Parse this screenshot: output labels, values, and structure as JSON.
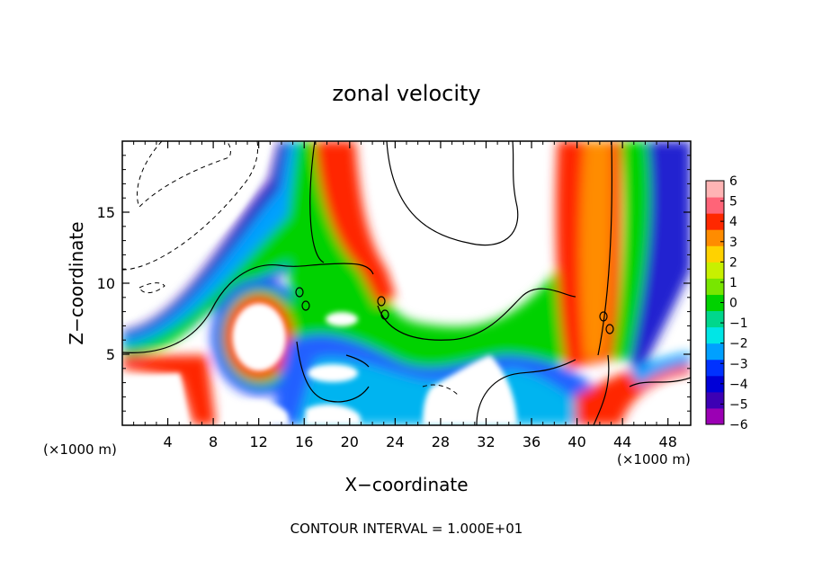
{
  "chart_data": {
    "type": "heatmap",
    "title": "zonal velocity",
    "xlabel": "X−coordinate",
    "ylabel": "Z−coordinate",
    "x_unit_label": "(×1000 m)",
    "z_unit_label": "(×1000 m)",
    "footer": "CONTOUR INTERVAL = 1.000E+01",
    "xlim": [
      0,
      50
    ],
    "ylim": [
      0,
      20
    ],
    "x_ticks": [
      4,
      8,
      12,
      16,
      20,
      24,
      28,
      32,
      36,
      40,
      44,
      48
    ],
    "x_tick_labels": [
      "4",
      "8",
      "12",
      "16",
      "20",
      "24",
      "28",
      "32",
      "36",
      "40",
      "44",
      "48"
    ],
    "y_ticks": [
      5,
      10,
      15
    ],
    "y_tick_labels": [
      "5",
      "10",
      "15"
    ],
    "colorbar": {
      "range": [
        -6,
        6
      ],
      "labels": [
        "6",
        "5",
        "4",
        "3",
        "2",
        "1",
        "0",
        "−1",
        "−2",
        "−3",
        "−4",
        "−5",
        "−6"
      ],
      "colors": [
        "#9b00b4",
        "#3c00b4",
        "#0000d7",
        "#0032ff",
        "#00a0ff",
        "#00e6e6",
        "#00d78c",
        "#00d200",
        "#78e600",
        "#c8f000",
        "#ffd200",
        "#ff8c00",
        "#ff2800",
        "#ff6478",
        "#ffb4b4"
      ]
    },
    "grid": false,
    "legend": "right (colorbar)"
  }
}
